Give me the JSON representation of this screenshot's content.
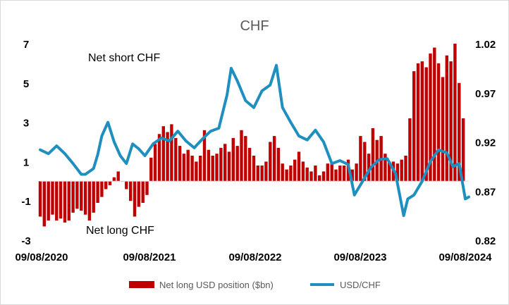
{
  "chart_data": {
    "type": "bar",
    "title": "CHF",
    "annotations": [
      "Net short CHF",
      "Net long CHF"
    ],
    "y_left": {
      "ticks": [
        "7",
        "5",
        "3",
        "1",
        "-1",
        "-3"
      ],
      "min": -3,
      "max": 7
    },
    "y_right": {
      "ticks": [
        "1.02",
        "0.97",
        "0.92",
        "0.87",
        "0.82"
      ],
      "min": 0.82,
      "max": 1.02
    },
    "x_ticks": [
      "09/08/2020",
      "09/08/2021",
      "09/08/2022",
      "09/08/2023",
      "09/08/2024"
    ],
    "x_range": [
      "2020-08-09",
      "2024-08-09"
    ],
    "legend_position": "bottom",
    "colors": {
      "bars": "#c00000",
      "line": "#1f8fbf"
    },
    "series": [
      {
        "name": "Net long USD position ($bn)",
        "type": "bar",
        "points": [
          [
            "2020-08-09",
            -1.8
          ],
          [
            "2020-08-23",
            -2.3
          ],
          [
            "2020-09-06",
            -2.0
          ],
          [
            "2020-09-20",
            -1.7
          ],
          [
            "2020-10-04",
            -2.0
          ],
          [
            "2020-10-18",
            -1.9
          ],
          [
            "2020-11-01",
            -2.1
          ],
          [
            "2020-11-15",
            -2.0
          ],
          [
            "2020-11-29",
            -1.6
          ],
          [
            "2020-12-13",
            -1.4
          ],
          [
            "2020-12-27",
            -1.5
          ],
          [
            "2021-01-10",
            -1.7
          ],
          [
            "2021-01-24",
            -2.0
          ],
          [
            "2021-02-07",
            -1.6
          ],
          [
            "2021-02-21",
            -1.1
          ],
          [
            "2021-03-07",
            -0.8
          ],
          [
            "2021-03-21",
            -0.4
          ],
          [
            "2021-04-04",
            -0.2
          ],
          [
            "2021-04-18",
            0.2
          ],
          [
            "2021-05-02",
            0.5
          ],
          [
            "2021-05-16",
            0.0
          ],
          [
            "2021-05-30",
            -0.4
          ],
          [
            "2021-06-13",
            -1.0
          ],
          [
            "2021-06-27",
            -1.8
          ],
          [
            "2021-07-11",
            -1.3
          ],
          [
            "2021-07-25",
            -1.1
          ],
          [
            "2021-08-08",
            -0.7
          ],
          [
            "2021-08-22",
            1.2
          ],
          [
            "2021-09-05",
            1.9
          ],
          [
            "2021-09-19",
            2.4
          ],
          [
            "2021-10-03",
            2.8
          ],
          [
            "2021-10-17",
            2.5
          ],
          [
            "2021-10-31",
            2.9
          ],
          [
            "2021-11-14",
            2.2
          ],
          [
            "2021-11-28",
            1.8
          ],
          [
            "2021-12-12",
            1.4
          ],
          [
            "2021-12-26",
            1.6
          ],
          [
            "2022-01-09",
            1.3
          ],
          [
            "2022-01-23",
            1.0
          ],
          [
            "2022-02-06",
            1.3
          ],
          [
            "2022-02-20",
            2.6
          ],
          [
            "2022-03-06",
            1.6
          ],
          [
            "2022-03-20",
            1.3
          ],
          [
            "2022-04-03",
            1.4
          ],
          [
            "2022-04-17",
            1.7
          ],
          [
            "2022-05-01",
            1.9
          ],
          [
            "2022-05-15",
            1.5
          ],
          [
            "2022-05-29",
            2.2
          ],
          [
            "2022-06-12",
            1.8
          ],
          [
            "2022-06-26",
            2.6
          ],
          [
            "2022-07-10",
            2.3
          ],
          [
            "2022-07-24",
            1.7
          ],
          [
            "2022-08-07",
            1.3
          ],
          [
            "2022-08-21",
            0.8
          ],
          [
            "2022-09-04",
            0.8
          ],
          [
            "2022-09-18",
            1.0
          ],
          [
            "2022-10-02",
            2.0
          ],
          [
            "2022-10-16",
            2.3
          ],
          [
            "2022-10-30",
            1.7
          ],
          [
            "2022-11-13",
            0.9
          ],
          [
            "2022-11-27",
            0.6
          ],
          [
            "2022-12-11",
            0.8
          ],
          [
            "2022-12-25",
            1.1
          ],
          [
            "2023-01-08",
            1.5
          ],
          [
            "2023-01-22",
            1.0
          ],
          [
            "2023-02-05",
            0.7
          ],
          [
            "2023-02-19",
            0.5
          ],
          [
            "2023-03-05",
            0.8
          ],
          [
            "2023-03-19",
            0.3
          ],
          [
            "2023-04-02",
            0.5
          ],
          [
            "2023-04-16",
            0.9
          ],
          [
            "2023-04-30",
            0.9
          ],
          [
            "2023-05-14",
            0.6
          ],
          [
            "2023-05-28",
            0.8
          ],
          [
            "2023-06-11",
            0.8
          ],
          [
            "2023-06-25",
            1.1
          ],
          [
            "2023-07-09",
            0.6
          ],
          [
            "2023-07-23",
            0.9
          ],
          [
            "2023-08-06",
            2.3
          ],
          [
            "2023-08-20",
            2.0
          ],
          [
            "2023-09-03",
            1.4
          ],
          [
            "2023-09-17",
            2.7
          ],
          [
            "2023-10-01",
            2.1
          ],
          [
            "2023-10-15",
            2.3
          ],
          [
            "2023-10-29",
            1.4
          ],
          [
            "2023-11-12",
            1.0
          ],
          [
            "2023-11-26",
            1.0
          ],
          [
            "2023-12-10",
            0.9
          ],
          [
            "2023-12-24",
            1.1
          ],
          [
            "2024-01-07",
            1.3
          ],
          [
            "2024-01-21",
            3.2
          ],
          [
            "2024-02-04",
            5.6
          ],
          [
            "2024-02-18",
            6.0
          ],
          [
            "2024-03-03",
            6.1
          ],
          [
            "2024-03-17",
            5.8
          ],
          [
            "2024-03-31",
            6.5
          ],
          [
            "2024-04-14",
            6.8
          ],
          [
            "2024-04-28",
            6.0
          ],
          [
            "2024-05-12",
            5.3
          ],
          [
            "2024-05-26",
            6.4
          ],
          [
            "2024-06-09",
            6.1
          ],
          [
            "2024-06-23",
            7.0
          ],
          [
            "2024-07-07",
            5.0
          ],
          [
            "2024-07-21",
            3.2
          ]
        ]
      },
      {
        "name": "USD/CHF",
        "type": "line",
        "points": [
          [
            "2020-08-09",
            0.912
          ],
          [
            "2020-09-06",
            0.908
          ],
          [
            "2020-10-04",
            0.916
          ],
          [
            "2020-11-01",
            0.908
          ],
          [
            "2020-11-29",
            0.898
          ],
          [
            "2020-12-27",
            0.887
          ],
          [
            "2021-01-10",
            0.887
          ],
          [
            "2021-02-07",
            0.893
          ],
          [
            "2021-02-21",
            0.907
          ],
          [
            "2021-03-07",
            0.926
          ],
          [
            "2021-03-28",
            0.94
          ],
          [
            "2021-04-18",
            0.92
          ],
          [
            "2021-05-09",
            0.906
          ],
          [
            "2021-05-30",
            0.898
          ],
          [
            "2021-06-20",
            0.918
          ],
          [
            "2021-07-11",
            0.913
          ],
          [
            "2021-08-01",
            0.906
          ],
          [
            "2021-08-29",
            0.918
          ],
          [
            "2021-09-26",
            0.924
          ],
          [
            "2021-10-24",
            0.921
          ],
          [
            "2021-11-21",
            0.931
          ],
          [
            "2021-12-19",
            0.921
          ],
          [
            "2022-01-16",
            0.914
          ],
          [
            "2022-02-13",
            0.923
          ],
          [
            "2022-03-13",
            0.931
          ],
          [
            "2022-04-10",
            0.934
          ],
          [
            "2022-05-08",
            0.968
          ],
          [
            "2022-05-22",
            0.995
          ],
          [
            "2022-06-12",
            0.982
          ],
          [
            "2022-07-10",
            0.962
          ],
          [
            "2022-08-07",
            0.955
          ],
          [
            "2022-09-04",
            0.972
          ],
          [
            "2022-10-02",
            0.978
          ],
          [
            "2022-10-23",
            0.998
          ],
          [
            "2022-11-13",
            0.955
          ],
          [
            "2022-12-11",
            0.94
          ],
          [
            "2023-01-08",
            0.926
          ],
          [
            "2023-02-05",
            0.922
          ],
          [
            "2023-03-05",
            0.932
          ],
          [
            "2023-04-02",
            0.92
          ],
          [
            "2023-04-30",
            0.898
          ],
          [
            "2023-05-28",
            0.901
          ],
          [
            "2023-06-25",
            0.897
          ],
          [
            "2023-07-16",
            0.866
          ],
          [
            "2023-08-13",
            0.88
          ],
          [
            "2023-09-10",
            0.894
          ],
          [
            "2023-10-08",
            0.902
          ],
          [
            "2023-11-05",
            0.903
          ],
          [
            "2023-12-03",
            0.888
          ],
          [
            "2023-12-31",
            0.845
          ],
          [
            "2024-01-14",
            0.862
          ],
          [
            "2024-02-04",
            0.866
          ],
          [
            "2024-03-03",
            0.88
          ],
          [
            "2024-03-31",
            0.9
          ],
          [
            "2024-04-28",
            0.912
          ],
          [
            "2024-05-26",
            0.909
          ],
          [
            "2024-06-16",
            0.895
          ],
          [
            "2024-07-07",
            0.898
          ],
          [
            "2024-07-28",
            0.862
          ],
          [
            "2024-08-09",
            0.864
          ]
        ]
      }
    ]
  }
}
